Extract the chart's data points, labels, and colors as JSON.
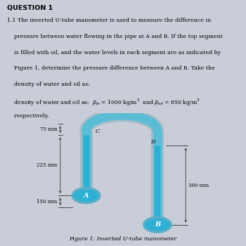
{
  "title": "QUESTION 1",
  "bg_color": "#c8cdd8",
  "tube_color": "#5bbcd6",
  "tube_edge_color": "#7ecce0",
  "tube_outer_color": "#a0bcc8",
  "fluid_color": "#2eafd4",
  "dim_75": "75 mm",
  "dim_225": "225 mm",
  "dim_150": "150 mm",
  "dim_300": "300 mm",
  "label_A": "A",
  "label_B": "B",
  "label_C": "C",
  "label_D": "D",
  "figure_caption": "Figure 1: Inverted U-tube manometer",
  "line1": "1.1 The inverted U-tube manometer is used to measure the difference in",
  "line2": "    pressure between water flowing in the pipe at A and B. If the top segment",
  "line3": "    is filled with oil, and the water levels in each segment are as indicated by",
  "line4": "    Figure 1, determine the pressure difference between A and B. Take the",
  "line5": "    density of water and oil as:",
  "line6": "    respectively."
}
